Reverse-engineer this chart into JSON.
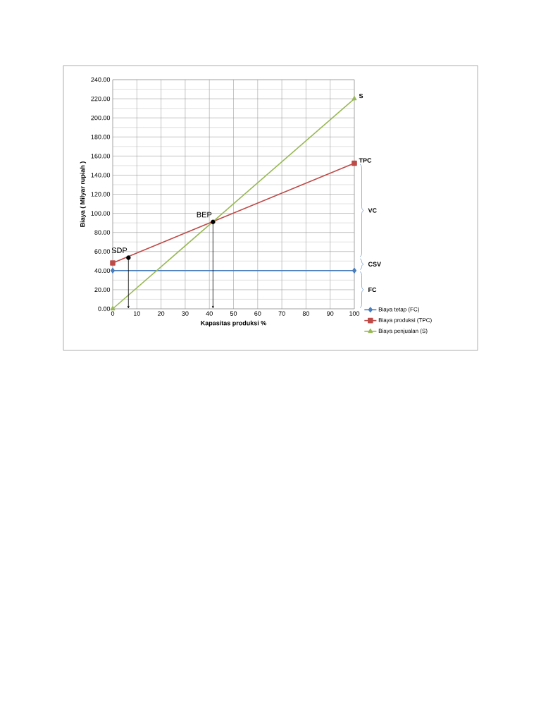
{
  "chart_data": {
    "type": "line",
    "xlabel": "Kapasitas produksi %",
    "ylabel": "Biaya ( Milyar rupiah )",
    "xlim": [
      0,
      100
    ],
    "ylim": [
      0,
      240
    ],
    "xticks": [
      0,
      10,
      20,
      30,
      40,
      50,
      60,
      70,
      80,
      90,
      100
    ],
    "yticks": [
      {
        "value": 0,
        "label": "0.00"
      },
      {
        "value": 20,
        "label": "20.00"
      },
      {
        "value": 40,
        "label": "40.00"
      },
      {
        "value": 60,
        "label": "60.00"
      },
      {
        "value": 80,
        "label": "80.00"
      },
      {
        "value": 100,
        "label": "100.00"
      },
      {
        "value": 120,
        "label": "120.00"
      },
      {
        "value": 140,
        "label": "140.00"
      },
      {
        "value": 160,
        "label": "160.00"
      },
      {
        "value": 180,
        "label": "180.00"
      },
      {
        "value": 200,
        "label": "200.00"
      },
      {
        "value": 220,
        "label": "220.00"
      },
      {
        "value": 240,
        "label": "240.00"
      }
    ],
    "x": [
      0,
      100
    ],
    "series": [
      {
        "name": "Biaya tetap (FC)",
        "color": "#4a7ebb",
        "values": [
          40,
          40
        ],
        "marker": "diamond"
      },
      {
        "name": "Biaya produksi (TPC)",
        "color": "#be4b48",
        "values": [
          48,
          152.5
        ],
        "marker": "square"
      },
      {
        "name": "Biaya penjualan (S)",
        "color": "#98b954",
        "values": [
          0,
          220
        ],
        "marker": "triangle"
      },
      {
        "type": "scatter",
        "color": "#000000",
        "x": [
          6.5,
          41.5
        ],
        "values": [
          53.5,
          91
        ],
        "marker": "circle"
      }
    ],
    "annotations": [
      {
        "text": "S",
        "x": 100,
        "y": 220
      },
      {
        "text": "TPC",
        "x": 100,
        "y": 152.5
      },
      {
        "text": "SDP",
        "x": 6.5,
        "y": 53.5
      },
      {
        "text": "BEP",
        "x": 41.5,
        "y": 91
      },
      "VC",
      "CSV",
      "FC"
    ],
    "grid": true,
    "legend": "right"
  }
}
